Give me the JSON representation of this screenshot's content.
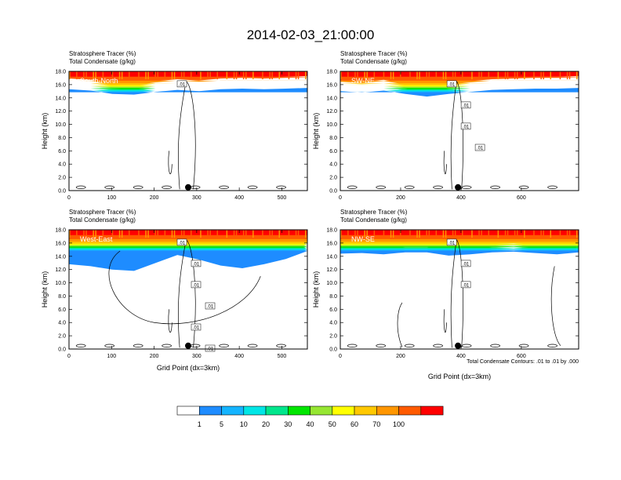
{
  "title": "2014-02-03_21:00:00",
  "colorbar": {
    "colors": [
      "#ffffff",
      "#1e8cff",
      "#14b4ff",
      "#00e6e6",
      "#00e68c",
      "#00e600",
      "#96e632",
      "#ffff00",
      "#ffc800",
      "#ff9600",
      "#ff5a00",
      "#ff0000"
    ],
    "labels": [
      "1",
      "5",
      "10",
      "20",
      "30",
      "40",
      "50",
      "60",
      "70",
      "100"
    ]
  },
  "footnote": "Total Condensate Contours: .01 to .01 by .000",
  "chart_data": [
    {
      "type": "heatmap",
      "panel_name": "South-North",
      "subtitle_line1": "Stratosphere Tracer   (%)",
      "subtitle_line2": "Total Condensate   (g/kg)",
      "ylabel": "Height (km)",
      "xlabel": "",
      "xlim": [
        0,
        560
      ],
      "ylim": [
        0,
        18
      ],
      "x_ticks": [
        "0",
        "100",
        "200",
        "300",
        "400",
        "500"
      ],
      "x_tick_values": [
        0,
        100,
        200,
        300,
        400,
        500
      ],
      "y_ticks": [
        "0.0",
        "2.0",
        "4.0",
        "6.0",
        "8.0",
        "10.0",
        "12.0",
        "14.0",
        "16.0",
        "18.0"
      ],
      "tracer_base_km": [
        15.3,
        15.1,
        14.6,
        14.5,
        14.9,
        15.2,
        15.0,
        15.3,
        15.4,
        15.3,
        15.4,
        15.5
      ],
      "contour_labels": [
        ".01"
      ],
      "marker_x": 280
    },
    {
      "type": "heatmap",
      "panel_name": "SW-NE",
      "subtitle_line1": "Stratosphere Tracer   (%)",
      "subtitle_line2": "Total Condensate   (g/kg)",
      "ylabel": "Height (km)",
      "xlabel": "",
      "xlim": [
        0,
        790
      ],
      "ylim": [
        0,
        18
      ],
      "x_ticks": [
        "0",
        "200",
        "400",
        "600"
      ],
      "x_tick_values": [
        0,
        200,
        400,
        600
      ],
      "y_ticks": [
        "0.0",
        "2.0",
        "4.0",
        "6.0",
        "8.0",
        "10.0",
        "12.0",
        "14.0",
        "16.0",
        "18.0"
      ],
      "tracer_base_km": [
        15.0,
        14.8,
        15.1,
        14.6,
        14.2,
        14.6,
        14.9,
        15.2,
        15.3,
        15.4,
        15.4,
        15.5
      ],
      "contour_labels": [
        ".01",
        ".01",
        ".01",
        ".01"
      ],
      "marker_x": 390
    },
    {
      "type": "heatmap",
      "panel_name": "West-East",
      "subtitle_line1": "Stratosphere Tracer   (%)",
      "subtitle_line2": "Total Condensate   (g/kg)",
      "ylabel": "Height (km)",
      "xlabel": "Grid Point (dx=3km)",
      "xlim": [
        0,
        560
      ],
      "ylim": [
        0,
        18
      ],
      "x_ticks": [
        "0",
        "100",
        "200",
        "300",
        "400",
        "500"
      ],
      "x_tick_values": [
        0,
        100,
        200,
        300,
        400,
        500
      ],
      "y_ticks": [
        "0.0",
        "2.0",
        "4.0",
        "6.0",
        "8.0",
        "10.0",
        "12.0",
        "14.0",
        "16.0",
        "18.0"
      ],
      "tracer_base_km": [
        12.8,
        12.5,
        12.0,
        11.8,
        13.0,
        14.2,
        13.5,
        12.6,
        12.2,
        12.8,
        13.6,
        14.8
      ],
      "contour_labels": [
        ".01",
        ".01",
        ".01",
        ".01",
        ".01",
        ".01"
      ],
      "marker_x": 280
    },
    {
      "type": "heatmap",
      "panel_name": "NW-SE",
      "subtitle_line1": "Stratosphere Tracer   (%)",
      "subtitle_line2": "Total Condensate   (g/kg)",
      "ylabel": "Height (km)",
      "xlabel": "Grid Point (dx=3km)",
      "xlim": [
        0,
        790
      ],
      "ylim": [
        0,
        18
      ],
      "x_ticks": [
        "0",
        "200",
        "400",
        "600"
      ],
      "x_tick_values": [
        0,
        200,
        400,
        600
      ],
      "y_ticks": [
        "0.0",
        "2.0",
        "4.0",
        "6.0",
        "8.0",
        "10.0",
        "12.0",
        "14.0",
        "16.0",
        "18.0"
      ],
      "tracer_base_km": [
        14.4,
        14.5,
        14.3,
        14.6,
        14.6,
        14.1,
        14.3,
        14.6,
        14.7,
        14.5,
        14.3,
        14.6
      ],
      "contour_labels": [
        ".01",
        ".01",
        ".01"
      ],
      "marker_x": 390
    }
  ]
}
